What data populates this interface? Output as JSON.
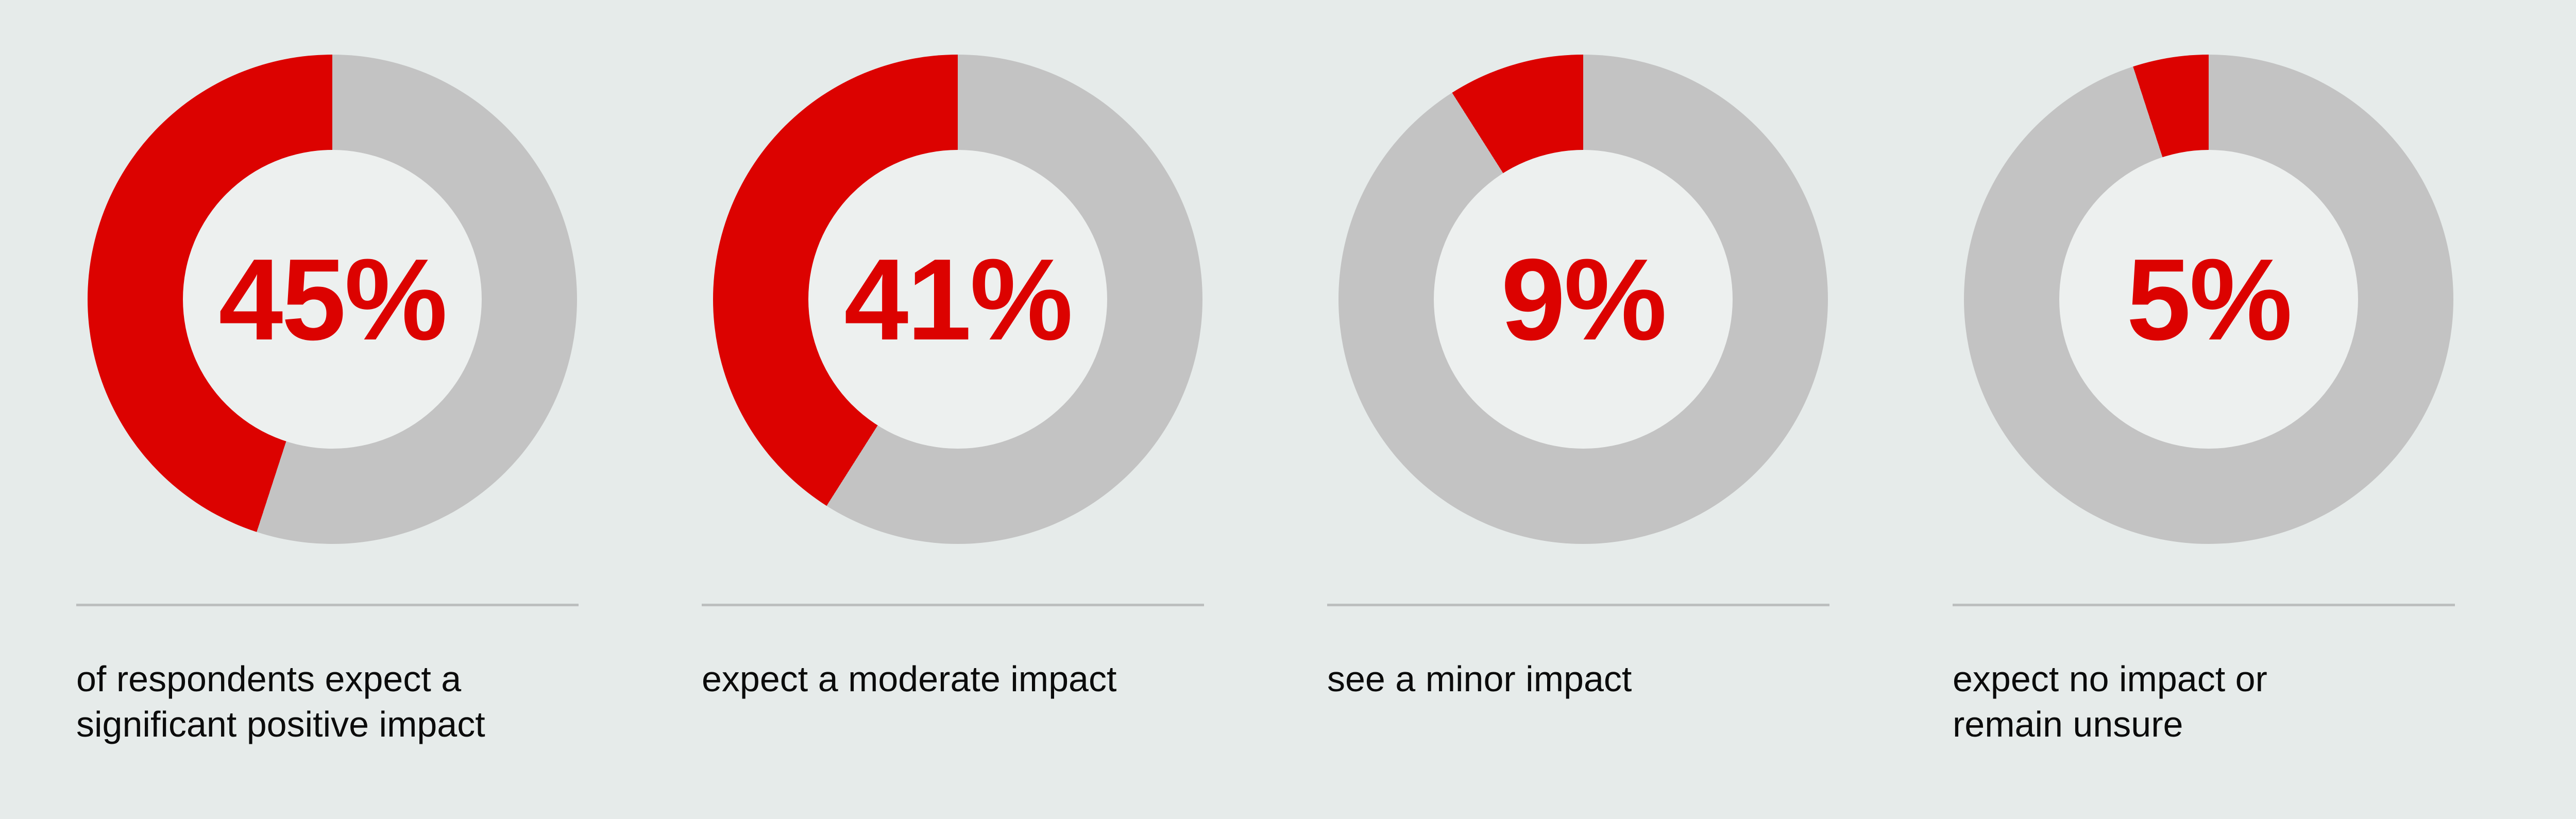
{
  "page": {
    "background_color": "#e6ebea"
  },
  "chart_data": {
    "type": "pie",
    "variant": "donut",
    "unit": "%",
    "fill_direction": "counterclockwise-from-top",
    "legend_position": "none",
    "colors": {
      "filled": "#dc0200",
      "remainder": "#c3c3c3",
      "hole": "#edf0ef",
      "divider": "#bcbfbf",
      "caption_text": "#0b0b0b"
    },
    "items": [
      {
        "value": 45,
        "label": "45%",
        "caption": "of respondents expect a\nsignificant positive impact"
      },
      {
        "value": 41,
        "label": "41%",
        "caption": "expect a moderate impact"
      },
      {
        "value": 9,
        "label": "9%",
        "caption": "see a minor impact"
      },
      {
        "value": 5,
        "label": "5%",
        "caption": "expect no impact or\nremain unsure"
      }
    ]
  }
}
